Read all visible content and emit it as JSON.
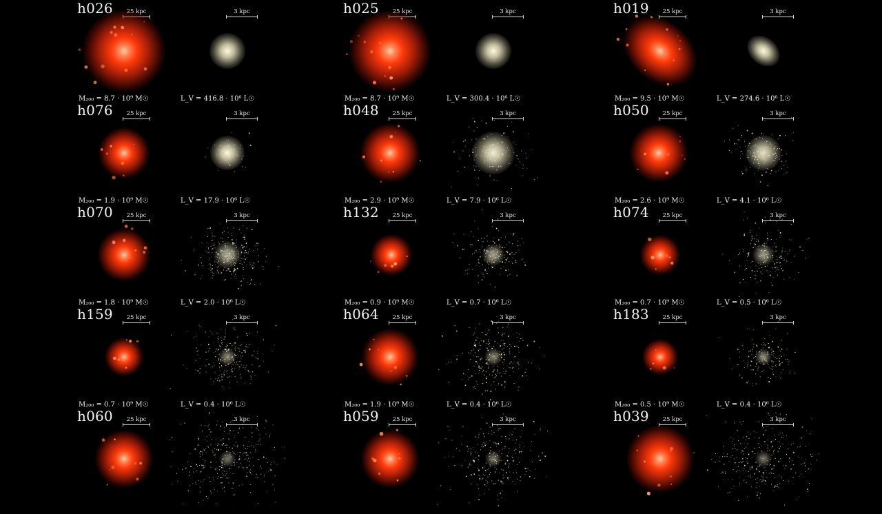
{
  "panels": [
    {
      "name": "h026",
      "dm_scale": "25 kpc",
      "star_scale": "3 kpc",
      "mass": "M₂₀₀ = 8.7 · 10⁹ M☉",
      "lum": "L_V = 416.8 · 10⁶ L☉"
    },
    {
      "name": "h025",
      "dm_scale": "25 kpc",
      "star_scale": "3 kpc",
      "mass": "M₂₀₀ = 8.7 · 10⁹ M☉",
      "lum": "L_V = 300.4 · 10⁶ L☉"
    },
    {
      "name": "h019",
      "dm_scale": "25 kpc",
      "star_scale": "3 kpc",
      "mass": "M₂₀₀ = 9.5 · 10⁹ M☉",
      "lum": "L_V = 274.6 · 10⁶ L☉"
    },
    {
      "name": "h076",
      "dm_scale": "25 kpc",
      "star_scale": "3 kpc",
      "mass": "M₂₀₀ = 1.9 · 10⁹ M☉",
      "lum": "L_V = 17.9 · 10⁶ L☉"
    },
    {
      "name": "h048",
      "dm_scale": "25 kpc",
      "star_scale": "3 kpc",
      "mass": "M₂₀₀ = 2.9 · 10⁹ M☉",
      "lum": "L_V = 7.9 · 10⁶ L☉"
    },
    {
      "name": "h050",
      "dm_scale": "25 kpc",
      "star_scale": "3 kpc",
      "mass": "M₂₀₀ = 2.6 · 10⁹ M☉",
      "lum": "L_V = 4.1 · 10⁶ L☉"
    },
    {
      "name": "h070",
      "dm_scale": "25 kpc",
      "star_scale": "3 kpc",
      "mass": "M₂₀₀ = 1.8 · 10⁹ M☉",
      "lum": "L_V = 2.0 · 10⁶ L☉"
    },
    {
      "name": "h132",
      "dm_scale": "25 kpc",
      "star_scale": "3 kpc",
      "mass": "M₂₀₀ = 0.9 · 10⁹ M☉",
      "lum": "L_V = 0.7 · 10⁶ L☉"
    },
    {
      "name": "h074",
      "dm_scale": "25 kpc",
      "star_scale": "3 kpc",
      "mass": "M₂₀₀ = 0.7 · 10⁹ M☉",
      "lum": "L_V = 0.5 · 10⁶ L☉"
    },
    {
      "name": "h159",
      "dm_scale": "25 kpc",
      "star_scale": "3 kpc",
      "mass": "M₂₀₀ = 0.7 · 10⁹ M☉",
      "lum": "L_V = 0.4 · 10⁶ L☉"
    },
    {
      "name": "h064",
      "dm_scale": "25 kpc",
      "star_scale": "3 kpc",
      "mass": "M₂₀₀ = 1.9 · 10⁹ M☉",
      "lum": "L_V = 0.4 · 10⁶ L☉"
    },
    {
      "name": "h183",
      "dm_scale": "25 kpc",
      "star_scale": "3 kpc",
      "mass": "M₂₀₀ = 0.5 · 10⁹ M☉",
      "lum": "L_V = 0.4 · 10⁶ L☉"
    },
    {
      "name": "h060",
      "dm_scale": "25 kpc",
      "star_scale": "3 kpc",
      "mass": "",
      "lum": ""
    },
    {
      "name": "h059",
      "dm_scale": "25 kpc",
      "star_scale": "3 kpc",
      "mass": "",
      "lum": ""
    },
    {
      "name": "h039",
      "dm_scale": "25 kpc",
      "star_scale": "3 kpc",
      "mass": "",
      "lum": ""
    }
  ],
  "colors": {
    "background": "#000000",
    "dark_matter_core": "#ffd2b0",
    "dark_matter_halo": "#ff3a0a",
    "stars": "#f4f0d8"
  }
}
